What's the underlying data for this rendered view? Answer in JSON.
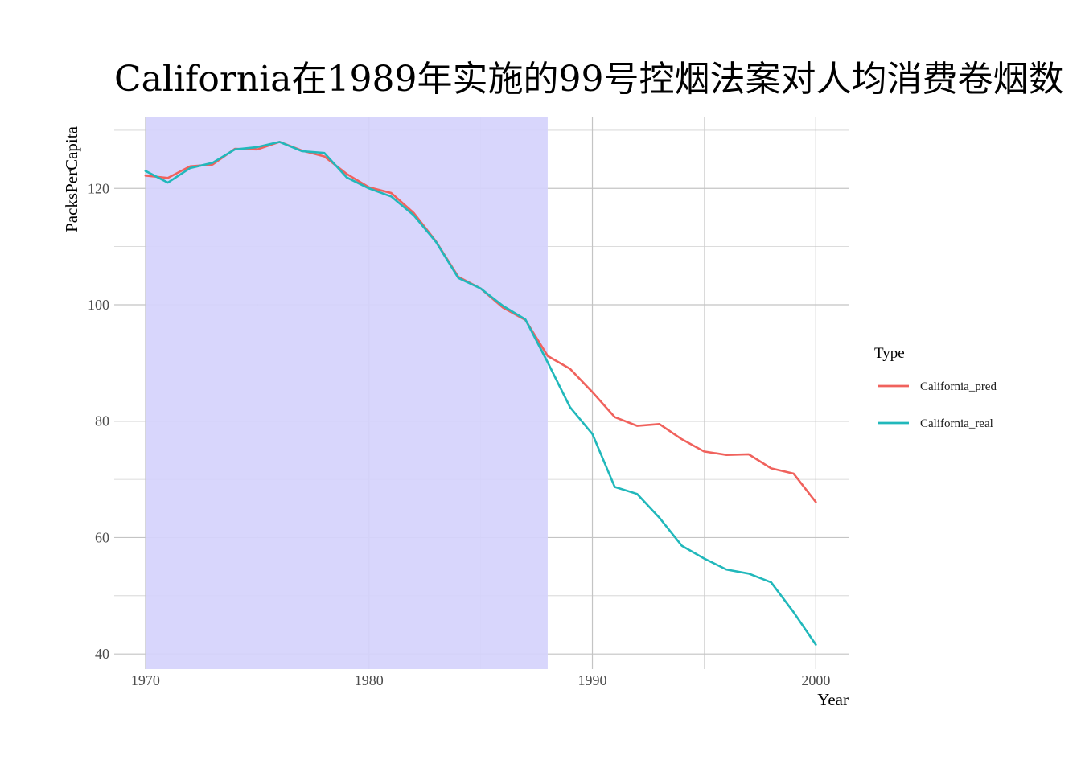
{
  "chart_data": {
    "type": "line",
    "title": "California在1989年实施的99号控烟法案对人均消费卷烟数",
    "xlabel": "Year",
    "ylabel": "PacksPerCapita",
    "xlim": [
      1968.6,
      2001.5
    ],
    "ylim": [
      37.4,
      132.2
    ],
    "x_ticks": [
      1970,
      1980,
      1990,
      2000
    ],
    "x_tick_labels": [
      "1970",
      "1980",
      "1990",
      "2000"
    ],
    "y_ticks": [
      40,
      60,
      80,
      100,
      120
    ],
    "y_tick_labels": [
      "40",
      "60",
      "80",
      "100",
      "120"
    ],
    "grid": true,
    "shaded_region": {
      "x": [
        1970,
        1988
      ],
      "color": "#d5d3fc"
    },
    "legend": {
      "title": "Type",
      "position": "right"
    },
    "x": [
      1970,
      1971,
      1972,
      1973,
      1974,
      1975,
      1976,
      1977,
      1978,
      1979,
      1980,
      1981,
      1982,
      1983,
      1984,
      1985,
      1986,
      1987,
      1988,
      1989,
      1990,
      1991,
      1992,
      1993,
      1994,
      1995,
      1996,
      1997,
      1998,
      1999,
      2000
    ],
    "series": [
      {
        "name": "California_pred",
        "color": "#f0625d",
        "values": [
          122.2,
          121.8,
          123.8,
          124.1,
          126.8,
          126.7,
          128.0,
          126.5,
          125.5,
          122.5,
          120.2,
          119.2,
          115.8,
          110.9,
          104.8,
          102.8,
          99.5,
          97.4,
          91.2,
          89.0,
          85.0,
          80.7,
          79.2,
          79.5,
          76.9,
          74.8,
          74.2,
          74.3,
          71.9,
          71.0,
          66.1
        ]
      },
      {
        "name": "California_real",
        "color": "#21b8bb",
        "values": [
          123.0,
          121.0,
          123.5,
          124.4,
          126.7,
          127.1,
          128.0,
          126.4,
          126.1,
          121.9,
          120.0,
          118.6,
          115.4,
          110.8,
          104.6,
          102.8,
          99.8,
          97.5,
          90.1,
          82.4,
          77.8,
          68.7,
          67.5,
          63.4,
          58.6,
          56.4,
          54.5,
          53.8,
          52.3,
          47.2,
          41.6
        ]
      }
    ]
  }
}
